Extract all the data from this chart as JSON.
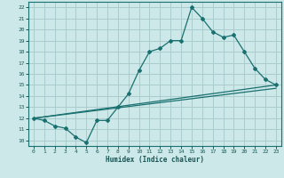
{
  "title": "",
  "xlabel": "Humidex (Indice chaleur)",
  "bg_color": "#cce8e8",
  "line_color": "#1a7070",
  "grid_color": "#aacccc",
  "xlim": [
    -0.5,
    23.5
  ],
  "ylim": [
    9.5,
    22.5
  ],
  "xticks": [
    0,
    1,
    2,
    3,
    4,
    5,
    6,
    7,
    8,
    9,
    10,
    11,
    12,
    13,
    14,
    15,
    16,
    17,
    18,
    19,
    20,
    21,
    22,
    23
  ],
  "yticks": [
    10,
    11,
    12,
    13,
    14,
    15,
    16,
    17,
    18,
    19,
    20,
    21,
    22
  ],
  "line1_x": [
    0,
    1,
    2,
    3,
    4,
    5,
    6,
    7,
    8,
    9,
    10,
    11,
    12,
    13,
    14,
    15,
    16,
    17,
    18,
    19,
    20,
    21,
    22,
    23
  ],
  "line1_y": [
    12.0,
    11.8,
    11.3,
    11.1,
    10.3,
    9.8,
    11.8,
    11.8,
    13.0,
    14.2,
    16.3,
    18.0,
    18.3,
    19.0,
    19.0,
    22.0,
    21.0,
    19.8,
    19.3,
    19.5,
    18.0,
    16.5,
    15.5,
    15.0
  ],
  "line2_x": [
    0,
    23
  ],
  "line2_y": [
    12.0,
    15.0
  ],
  "line3_x": [
    0,
    23
  ],
  "line3_y": [
    12.0,
    14.7
  ]
}
